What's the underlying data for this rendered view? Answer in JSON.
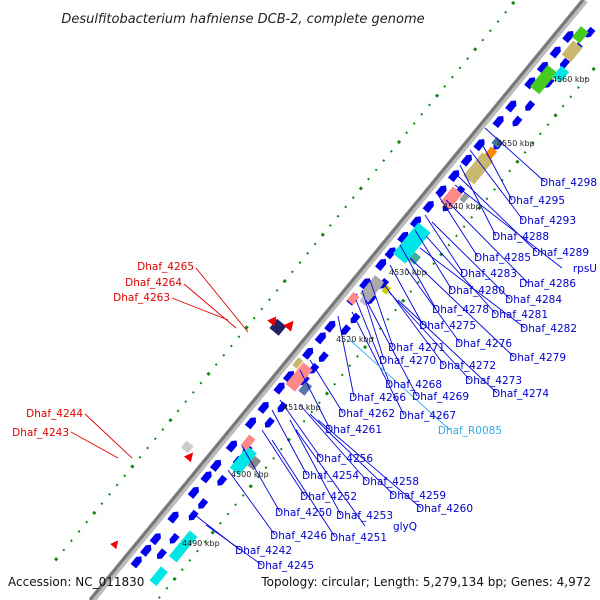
{
  "title": "Desulfitobacterium hafniense DCB-2, complete genome",
  "accession": "Accession: NC_011830",
  "summary": "Topology: circular; Length: 5,279,134 bp; Genes: 4,972",
  "colors": {
    "label_blue": "#0000cc",
    "label_red": "#dd0000",
    "label_cyan": "#33aaee",
    "backbone": "#888888",
    "cds_blue": "#0000ee",
    "cyan": "#00e5e5",
    "green": "#44cc22",
    "pink": "#ff8888",
    "olive": "#c8b870",
    "orange": "#ff8800",
    "navy": "#222266",
    "red": "#ee0000",
    "gc_green": "#118811"
  },
  "kbp_ticks": [
    "4490 kbp",
    "4500 kbp",
    "4510 kbp",
    "4520 kbp",
    "4530 kbp",
    "4540 kbp",
    "4550 kbp",
    "4560 kbp"
  ],
  "labels_blue": [
    "Dhaf_4298",
    "Dhaf_4295",
    "Dhaf_4293",
    "Dhaf_4288",
    "Dhaf_4289",
    "rpsU",
    "Dhaf_4285",
    "Dhaf_4286",
    "Dhaf_4283",
    "Dhaf_4284",
    "Dhaf_4280",
    "Dhaf_4281",
    "Dhaf_4278",
    "Dhaf_4282",
    "Dhaf_4275",
    "Dhaf_4276",
    "Dhaf_4279",
    "Dhaf_4271",
    "Dhaf_4272",
    "Dhaf_4270",
    "Dhaf_4273",
    "Dhaf_4268",
    "Dhaf_4274",
    "Dhaf_4266",
    "Dhaf_4269",
    "Dhaf_4262",
    "Dhaf_4267",
    "Dhaf_4261",
    "Dhaf_4256",
    "Dhaf_4254",
    "Dhaf_4258",
    "Dhaf_4259",
    "Dhaf_4252",
    "Dhaf_4260",
    "Dhaf_4250",
    "Dhaf_4253",
    "glyQ",
    "Dhaf_4246",
    "Dhaf_4251",
    "Dhaf_4242",
    "Dhaf_4245"
  ],
  "labels_cyan": [
    "Dhaf_R0085"
  ],
  "labels_red": [
    "Dhaf_4265",
    "Dhaf_4264",
    "Dhaf_4263",
    "Dhaf_4244",
    "Dhaf_4243"
  ]
}
